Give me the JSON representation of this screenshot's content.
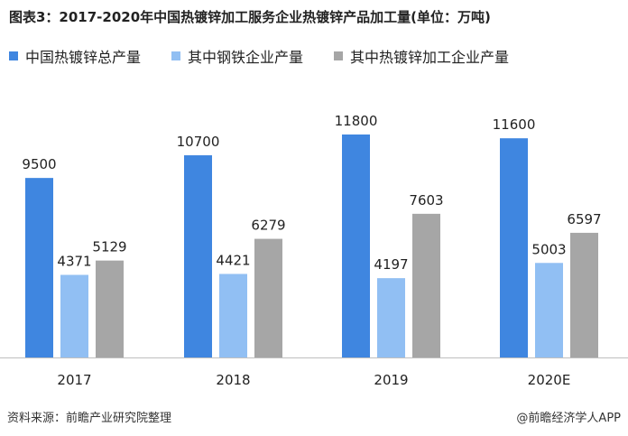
{
  "title": "图表3：2017-2020年中国热镀锌加工服务企业热镀锌产品加工量(单位：万吨)",
  "source": "资料来源：前瞻产业研究院整理",
  "credit": "@前瞻经济学人APP",
  "colors": {
    "axis": "#bfbfbf",
    "label": "#222222"
  },
  "chart_data": {
    "type": "bar",
    "title": "图表3：2017-2020年中国热镀锌加工服务企业热镀锌产品加工量(单位：万吨)",
    "categories": [
      "2017",
      "2018",
      "2019",
      "2020E"
    ],
    "series": [
      {
        "name": "中国热镀锌总产量",
        "color": "#3f86e0",
        "values": [
          9500,
          10700,
          11800,
          11600
        ]
      },
      {
        "name": "其中钢铁企业产量",
        "color": "#91bff3",
        "values": [
          4371,
          4421,
          4197,
          5003
        ]
      },
      {
        "name": "其中热镀锌加工企业产量",
        "color": "#a6a6a6",
        "values": [
          5129,
          6279,
          7603,
          6597
        ]
      }
    ],
    "ylim": [
      0,
      11800
    ],
    "xlabel": "",
    "ylabel": "",
    "grid": false,
    "legend": "top-left",
    "data_labels": true
  }
}
